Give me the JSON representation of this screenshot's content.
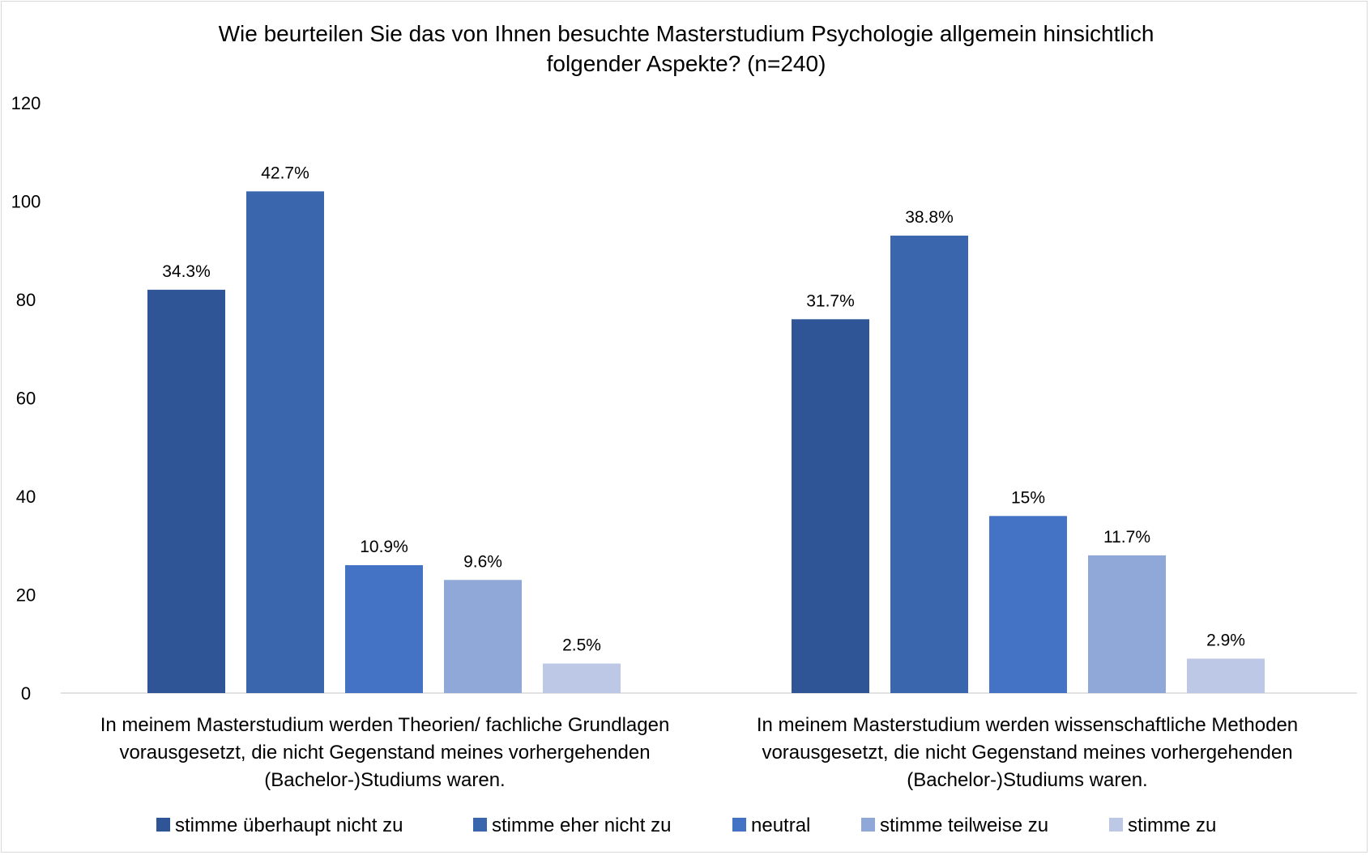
{
  "chart_data": {
    "type": "bar",
    "title": "Wie beurteilen Sie das von Ihnen besuchte Masterstudium Psychologie allgemein hinsichtlich folgender Aspekte? (n=240)",
    "title_lines": [
      "Wie beurteilen Sie das von Ihnen besuchte Masterstudium Psychologie allgemein hinsichtlich",
      "folgender Aspekte? (n=240)"
    ],
    "xlabel": "",
    "ylabel": "",
    "ylim": [
      0,
      120
    ],
    "yticks": [
      0,
      20,
      40,
      60,
      80,
      100,
      120
    ],
    "grid": false,
    "legend_position": "bottom",
    "categories": [
      "In meinem Masterstudium werden Theorien/ fachliche Grundlagen vorausgesetzt, die nicht Gegenstand meines vorhergehenden (Bachelor-)Studiums waren.",
      "In meinem Masterstudium werden wissenschaftliche Methoden vorausgesetzt, die nicht Gegenstand meines vorhergehenden (Bachelor-)Studiums waren."
    ],
    "category_lines": [
      [
        "In meinem Masterstudium werden Theorien/ fachliche Grundlagen",
        "vorausgesetzt, die nicht Gegenstand meines vorhergehenden",
        "(Bachelor-)Studiums waren."
      ],
      [
        "In meinem Masterstudium werden wissenschaftliche Methoden",
        "vorausgesetzt, die nicht Gegenstand meines vorhergehenden",
        "(Bachelor-)Studiums waren."
      ]
    ],
    "series": [
      {
        "name": "stimme überhaupt nicht zu",
        "color": "#2f5597",
        "values": [
          82,
          76
        ],
        "labels": [
          "34.3%",
          "31.7%"
        ]
      },
      {
        "name": "stimme eher nicht zu",
        "color": "#3a66ae",
        "values": [
          102,
          93
        ],
        "labels": [
          "42.7%",
          "38.8%"
        ]
      },
      {
        "name": "neutral",
        "color": "#4472c4",
        "values": [
          26,
          36
        ],
        "labels": [
          "10.9%",
          "15%"
        ]
      },
      {
        "name": "stimme teilweise zu",
        "color": "#8fa8d8",
        "values": [
          23,
          28
        ],
        "labels": [
          "9.6%",
          "11.7%"
        ]
      },
      {
        "name": "stimme zu",
        "color": "#bcc8e6",
        "values": [
          6,
          7
        ],
        "labels": [
          "2.5%",
          "2.9%"
        ]
      }
    ]
  }
}
